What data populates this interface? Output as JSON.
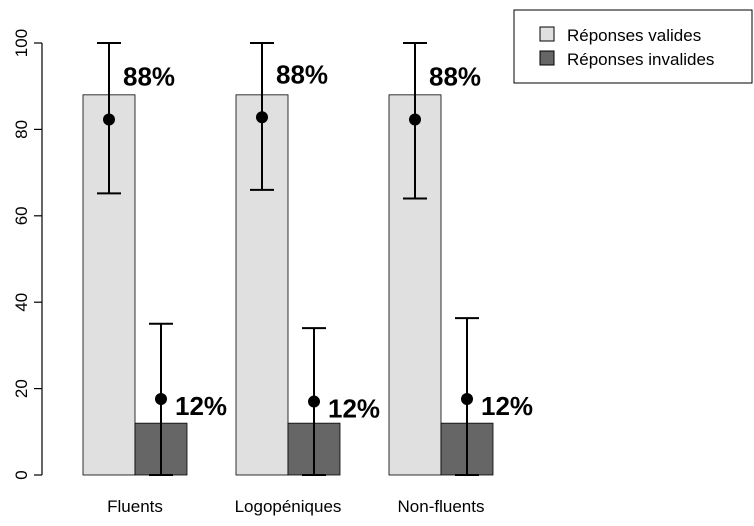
{
  "chart_data": {
    "type": "bar",
    "title": "",
    "xlabel": "",
    "ylabel": "",
    "ylim": [
      0,
      100
    ],
    "yticks": [
      0,
      20,
      40,
      60,
      80,
      100
    ],
    "grid": false,
    "legend_position": "top-right",
    "categories": [
      "Fluents",
      "Logopéniques",
      "Non-fluents"
    ],
    "series": [
      {
        "name": "Réponses valides",
        "color": "#e0e0e0",
        "values": [
          88,
          88,
          88
        ],
        "labels": [
          "88%",
          "88%",
          "88%"
        ],
        "mean": [
          82.3,
          82.8,
          82.3
        ],
        "error_low": [
          65.2,
          66,
          64
        ],
        "error_high": [
          100,
          100,
          100
        ]
      },
      {
        "name": "Réponses invalides",
        "color": "#666666",
        "values": [
          12,
          12,
          12
        ],
        "labels": [
          "12%",
          "12%",
          "12%"
        ],
        "mean": [
          17.6,
          17,
          17.6
        ],
        "error_low": [
          0,
          0,
          0
        ],
        "error_high": [
          35,
          34,
          36.3
        ]
      }
    ]
  }
}
